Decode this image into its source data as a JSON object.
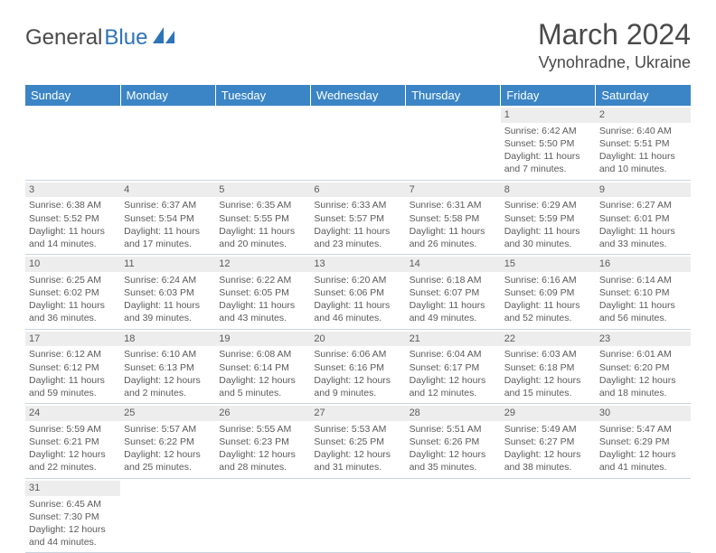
{
  "logo": {
    "part1": "General",
    "part2": "Blue"
  },
  "title": "March 2024",
  "location": "Vynohradne, Ukraine",
  "day_headers": [
    "Sunday",
    "Monday",
    "Tuesday",
    "Wednesday",
    "Thursday",
    "Friday",
    "Saturday"
  ],
  "colors": {
    "header_bg": "#3b85c6",
    "daynum_bg": "#ededed",
    "border": "#c9d4de",
    "logo_blue": "#2d74b8"
  },
  "weeks": [
    [
      null,
      null,
      null,
      null,
      null,
      {
        "n": "1",
        "sr": "Sunrise: 6:42 AM",
        "ss": "Sunset: 5:50 PM",
        "d1": "Daylight: 11 hours",
        "d2": "and 7 minutes."
      },
      {
        "n": "2",
        "sr": "Sunrise: 6:40 AM",
        "ss": "Sunset: 5:51 PM",
        "d1": "Daylight: 11 hours",
        "d2": "and 10 minutes."
      }
    ],
    [
      {
        "n": "3",
        "sr": "Sunrise: 6:38 AM",
        "ss": "Sunset: 5:52 PM",
        "d1": "Daylight: 11 hours",
        "d2": "and 14 minutes."
      },
      {
        "n": "4",
        "sr": "Sunrise: 6:37 AM",
        "ss": "Sunset: 5:54 PM",
        "d1": "Daylight: 11 hours",
        "d2": "and 17 minutes."
      },
      {
        "n": "5",
        "sr": "Sunrise: 6:35 AM",
        "ss": "Sunset: 5:55 PM",
        "d1": "Daylight: 11 hours",
        "d2": "and 20 minutes."
      },
      {
        "n": "6",
        "sr": "Sunrise: 6:33 AM",
        "ss": "Sunset: 5:57 PM",
        "d1": "Daylight: 11 hours",
        "d2": "and 23 minutes."
      },
      {
        "n": "7",
        "sr": "Sunrise: 6:31 AM",
        "ss": "Sunset: 5:58 PM",
        "d1": "Daylight: 11 hours",
        "d2": "and 26 minutes."
      },
      {
        "n": "8",
        "sr": "Sunrise: 6:29 AM",
        "ss": "Sunset: 5:59 PM",
        "d1": "Daylight: 11 hours",
        "d2": "and 30 minutes."
      },
      {
        "n": "9",
        "sr": "Sunrise: 6:27 AM",
        "ss": "Sunset: 6:01 PM",
        "d1": "Daylight: 11 hours",
        "d2": "and 33 minutes."
      }
    ],
    [
      {
        "n": "10",
        "sr": "Sunrise: 6:25 AM",
        "ss": "Sunset: 6:02 PM",
        "d1": "Daylight: 11 hours",
        "d2": "and 36 minutes."
      },
      {
        "n": "11",
        "sr": "Sunrise: 6:24 AM",
        "ss": "Sunset: 6:03 PM",
        "d1": "Daylight: 11 hours",
        "d2": "and 39 minutes."
      },
      {
        "n": "12",
        "sr": "Sunrise: 6:22 AM",
        "ss": "Sunset: 6:05 PM",
        "d1": "Daylight: 11 hours",
        "d2": "and 43 minutes."
      },
      {
        "n": "13",
        "sr": "Sunrise: 6:20 AM",
        "ss": "Sunset: 6:06 PM",
        "d1": "Daylight: 11 hours",
        "d2": "and 46 minutes."
      },
      {
        "n": "14",
        "sr": "Sunrise: 6:18 AM",
        "ss": "Sunset: 6:07 PM",
        "d1": "Daylight: 11 hours",
        "d2": "and 49 minutes."
      },
      {
        "n": "15",
        "sr": "Sunrise: 6:16 AM",
        "ss": "Sunset: 6:09 PM",
        "d1": "Daylight: 11 hours",
        "d2": "and 52 minutes."
      },
      {
        "n": "16",
        "sr": "Sunrise: 6:14 AM",
        "ss": "Sunset: 6:10 PM",
        "d1": "Daylight: 11 hours",
        "d2": "and 56 minutes."
      }
    ],
    [
      {
        "n": "17",
        "sr": "Sunrise: 6:12 AM",
        "ss": "Sunset: 6:12 PM",
        "d1": "Daylight: 11 hours",
        "d2": "and 59 minutes."
      },
      {
        "n": "18",
        "sr": "Sunrise: 6:10 AM",
        "ss": "Sunset: 6:13 PM",
        "d1": "Daylight: 12 hours",
        "d2": "and 2 minutes."
      },
      {
        "n": "19",
        "sr": "Sunrise: 6:08 AM",
        "ss": "Sunset: 6:14 PM",
        "d1": "Daylight: 12 hours",
        "d2": "and 5 minutes."
      },
      {
        "n": "20",
        "sr": "Sunrise: 6:06 AM",
        "ss": "Sunset: 6:16 PM",
        "d1": "Daylight: 12 hours",
        "d2": "and 9 minutes."
      },
      {
        "n": "21",
        "sr": "Sunrise: 6:04 AM",
        "ss": "Sunset: 6:17 PM",
        "d1": "Daylight: 12 hours",
        "d2": "and 12 minutes."
      },
      {
        "n": "22",
        "sr": "Sunrise: 6:03 AM",
        "ss": "Sunset: 6:18 PM",
        "d1": "Daylight: 12 hours",
        "d2": "and 15 minutes."
      },
      {
        "n": "23",
        "sr": "Sunrise: 6:01 AM",
        "ss": "Sunset: 6:20 PM",
        "d1": "Daylight: 12 hours",
        "d2": "and 18 minutes."
      }
    ],
    [
      {
        "n": "24",
        "sr": "Sunrise: 5:59 AM",
        "ss": "Sunset: 6:21 PM",
        "d1": "Daylight: 12 hours",
        "d2": "and 22 minutes."
      },
      {
        "n": "25",
        "sr": "Sunrise: 5:57 AM",
        "ss": "Sunset: 6:22 PM",
        "d1": "Daylight: 12 hours",
        "d2": "and 25 minutes."
      },
      {
        "n": "26",
        "sr": "Sunrise: 5:55 AM",
        "ss": "Sunset: 6:23 PM",
        "d1": "Daylight: 12 hours",
        "d2": "and 28 minutes."
      },
      {
        "n": "27",
        "sr": "Sunrise: 5:53 AM",
        "ss": "Sunset: 6:25 PM",
        "d1": "Daylight: 12 hours",
        "d2": "and 31 minutes."
      },
      {
        "n": "28",
        "sr": "Sunrise: 5:51 AM",
        "ss": "Sunset: 6:26 PM",
        "d1": "Daylight: 12 hours",
        "d2": "and 35 minutes."
      },
      {
        "n": "29",
        "sr": "Sunrise: 5:49 AM",
        "ss": "Sunset: 6:27 PM",
        "d1": "Daylight: 12 hours",
        "d2": "and 38 minutes."
      },
      {
        "n": "30",
        "sr": "Sunrise: 5:47 AM",
        "ss": "Sunset: 6:29 PM",
        "d1": "Daylight: 12 hours",
        "d2": "and 41 minutes."
      }
    ],
    [
      {
        "n": "31",
        "sr": "Sunrise: 6:45 AM",
        "ss": "Sunset: 7:30 PM",
        "d1": "Daylight: 12 hours",
        "d2": "and 44 minutes."
      },
      null,
      null,
      null,
      null,
      null,
      null
    ]
  ]
}
